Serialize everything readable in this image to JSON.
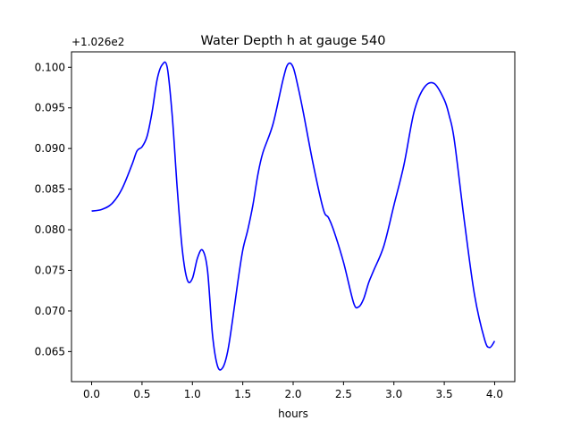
{
  "chart_data": {
    "type": "line",
    "title": "Water Depth h at gauge 540",
    "xlabel": "hours",
    "ylabel": "",
    "offset_label": "+1.026e2",
    "xlim": [
      -0.2,
      4.2
    ],
    "ylim": [
      0.0613,
      0.1019
    ],
    "xticks": [
      0.0,
      0.5,
      1.0,
      1.5,
      2.0,
      2.5,
      3.0,
      3.5,
      4.0
    ],
    "xtick_labels": [
      "0.0",
      "0.5",
      "1.0",
      "1.5",
      "2.0",
      "2.5",
      "3.0",
      "3.5",
      "4.0"
    ],
    "yticks": [
      0.065,
      0.07,
      0.075,
      0.08,
      0.085,
      0.09,
      0.095,
      0.1
    ],
    "ytick_labels": [
      "0.065",
      "0.070",
      "0.075",
      "0.080",
      "0.085",
      "0.090",
      "0.095",
      "0.100"
    ],
    "grid": false,
    "legend": "none",
    "series": [
      {
        "color": "#0000ff",
        "x": [
          0.0,
          0.1,
          0.2,
          0.3,
          0.4,
          0.45,
          0.5,
          0.55,
          0.6,
          0.65,
          0.7,
          0.75,
          0.8,
          0.85,
          0.9,
          0.95,
          1.0,
          1.05,
          1.1,
          1.15,
          1.2,
          1.25,
          1.3,
          1.35,
          1.4,
          1.45,
          1.5,
          1.55,
          1.6,
          1.65,
          1.7,
          1.8,
          1.9,
          1.95,
          2.0,
          2.05,
          2.1,
          2.2,
          2.3,
          2.35,
          2.4,
          2.5,
          2.6,
          2.65,
          2.7,
          2.75,
          2.8,
          2.9,
          3.0,
          3.1,
          3.2,
          3.3,
          3.4,
          3.5,
          3.55,
          3.6,
          3.7,
          3.8,
          3.9,
          3.95,
          4.0
        ],
        "y": [
          0.0823,
          0.0825,
          0.0832,
          0.085,
          0.088,
          0.0897,
          0.0902,
          0.0915,
          0.0945,
          0.0985,
          0.1003,
          0.1,
          0.094,
          0.085,
          0.0775,
          0.0738,
          0.074,
          0.0765,
          0.0775,
          0.075,
          0.067,
          0.0632,
          0.063,
          0.065,
          0.069,
          0.0735,
          0.0775,
          0.08,
          0.083,
          0.0868,
          0.0895,
          0.093,
          0.0985,
          0.1004,
          0.1,
          0.0975,
          0.0945,
          0.088,
          0.0825,
          0.0815,
          0.08,
          0.076,
          0.071,
          0.0705,
          0.0715,
          0.0735,
          0.075,
          0.078,
          0.083,
          0.088,
          0.0945,
          0.0975,
          0.098,
          0.096,
          0.094,
          0.091,
          0.081,
          0.072,
          0.0665,
          0.0655,
          0.0663
        ]
      }
    ]
  }
}
